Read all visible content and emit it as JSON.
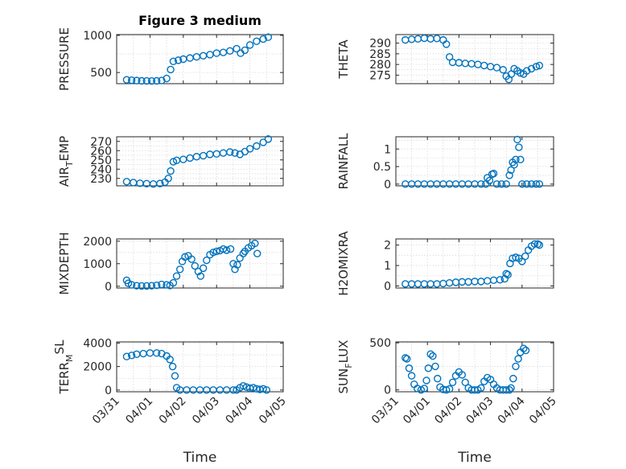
{
  "figure": {
    "title": "Figure 3 medium",
    "marker_color": "#0072BD",
    "xtick_labels": [
      "03/31",
      "04/01",
      "04/02",
      "04/03",
      "04/04",
      "04/05"
    ]
  },
  "chart_data": [
    {
      "type": "scatter",
      "ylabel": "PRESSURE",
      "x_unit": "days from 03/31",
      "xlim": [
        0,
        5
      ],
      "ylim": [
        350,
        1010
      ],
      "yticks": [
        500,
        1000
      ],
      "ytick_labels": [
        "500",
        "1000"
      ],
      "points": [
        [
          0.3,
          402
        ],
        [
          0.45,
          397
        ],
        [
          0.6,
          392
        ],
        [
          0.75,
          388
        ],
        [
          0.9,
          387
        ],
        [
          1.05,
          386
        ],
        [
          1.2,
          388
        ],
        [
          1.35,
          393
        ],
        [
          1.5,
          420
        ],
        [
          1.62,
          540
        ],
        [
          1.7,
          650
        ],
        [
          1.85,
          665
        ],
        [
          2.0,
          680
        ],
        [
          2.2,
          695
        ],
        [
          2.4,
          710
        ],
        [
          2.6,
          725
        ],
        [
          2.8,
          740
        ],
        [
          3.0,
          760
        ],
        [
          3.2,
          770
        ],
        [
          3.4,
          790
        ],
        [
          3.6,
          820
        ],
        [
          3.72,
          760
        ],
        [
          3.85,
          800
        ],
        [
          4.0,
          870
        ],
        [
          4.2,
          920
        ],
        [
          4.4,
          950
        ],
        [
          4.55,
          975
        ]
      ]
    },
    {
      "type": "scatter",
      "ylabel": "THETA",
      "x_unit": "days from 03/31",
      "xlim": [
        0,
        5
      ],
      "ylim": [
        271,
        294
      ],
      "yticks": [
        275,
        280,
        285,
        290
      ],
      "ytick_labels": [
        "275",
        "280",
        "285",
        "290"
      ],
      "points": [
        [
          0.3,
          291.5
        ],
        [
          0.5,
          291.8
        ],
        [
          0.7,
          292.0
        ],
        [
          0.9,
          292.3
        ],
        [
          1.1,
          292.0
        ],
        [
          1.3,
          292.2
        ],
        [
          1.5,
          291.5
        ],
        [
          1.6,
          289.5
        ],
        [
          1.7,
          283.5
        ],
        [
          1.8,
          281.0
        ],
        [
          2.0,
          280.8
        ],
        [
          2.2,
          280.5
        ],
        [
          2.4,
          280.3
        ],
        [
          2.6,
          280.0
        ],
        [
          2.8,
          279.5
        ],
        [
          3.0,
          279.0
        ],
        [
          3.2,
          278.5
        ],
        [
          3.4,
          277.5
        ],
        [
          3.5,
          274.5
        ],
        [
          3.58,
          273.0
        ],
        [
          3.66,
          275.5
        ],
        [
          3.75,
          278.0
        ],
        [
          3.85,
          277.0
        ],
        [
          3.95,
          276.0
        ],
        [
          4.05,
          275.5
        ],
        [
          4.15,
          277.0
        ],
        [
          4.3,
          278.0
        ],
        [
          4.45,
          279.0
        ],
        [
          4.55,
          279.5
        ]
      ]
    },
    {
      "type": "scatter",
      "ylabel": "AIR",
      "ylabel_sub": "T",
      "ylabel_tail": "EMP",
      "x_unit": "days from 03/31",
      "xlim": [
        0,
        5
      ],
      "ylim": [
        222,
        275
      ],
      "yticks": [
        230,
        240,
        250,
        260,
        270
      ],
      "ytick_labels": [
        "230",
        "240",
        "250",
        "260",
        "270"
      ],
      "points": [
        [
          0.3,
          226.5
        ],
        [
          0.5,
          225.5
        ],
        [
          0.7,
          224.8
        ],
        [
          0.9,
          224.3
        ],
        [
          1.1,
          224.0
        ],
        [
          1.3,
          224.5
        ],
        [
          1.45,
          226.0
        ],
        [
          1.55,
          230.0
        ],
        [
          1.62,
          238.0
        ],
        [
          1.7,
          248.0
        ],
        [
          1.8,
          249.5
        ],
        [
          2.0,
          250.5
        ],
        [
          2.2,
          252.0
        ],
        [
          2.4,
          253.5
        ],
        [
          2.6,
          254.5
        ],
        [
          2.8,
          256.0
        ],
        [
          3.0,
          256.5
        ],
        [
          3.2,
          257.5
        ],
        [
          3.4,
          258.5
        ],
        [
          3.55,
          257.5
        ],
        [
          3.7,
          256.0
        ],
        [
          3.85,
          259.0
        ],
        [
          4.0,
          262.0
        ],
        [
          4.2,
          265.0
        ],
        [
          4.4,
          269.0
        ],
        [
          4.55,
          272.5
        ]
      ]
    },
    {
      "type": "scatter",
      "ylabel": "RAINFALL",
      "x_unit": "days from 03/31",
      "xlim": [
        0,
        5
      ],
      "ylim": [
        -0.05,
        1.35
      ],
      "yticks": [
        0,
        0.5,
        1
      ],
      "ytick_labels": [
        "0",
        "0.5",
        "1"
      ],
      "points": [
        [
          0.3,
          0
        ],
        [
          0.5,
          0
        ],
        [
          0.7,
          0
        ],
        [
          0.9,
          0
        ],
        [
          1.1,
          0
        ],
        [
          1.3,
          0
        ],
        [
          1.5,
          0
        ],
        [
          1.7,
          0
        ],
        [
          1.9,
          0
        ],
        [
          2.1,
          0
        ],
        [
          2.3,
          0
        ],
        [
          2.5,
          0
        ],
        [
          2.7,
          0
        ],
        [
          2.85,
          0
        ],
        [
          2.9,
          0.18
        ],
        [
          2.97,
          0.1
        ],
        [
          3.05,
          0.28
        ],
        [
          3.1,
          0.3
        ],
        [
          3.2,
          0
        ],
        [
          3.35,
          0
        ],
        [
          3.5,
          0
        ],
        [
          3.6,
          0.25
        ],
        [
          3.65,
          0.4
        ],
        [
          3.7,
          0.62
        ],
        [
          3.75,
          0.55
        ],
        [
          3.8,
          0.7
        ],
        [
          3.85,
          1.27
        ],
        [
          3.9,
          1.05
        ],
        [
          3.95,
          0.7
        ],
        [
          4.0,
          0
        ],
        [
          4.15,
          0
        ],
        [
          4.3,
          0
        ],
        [
          4.45,
          0
        ],
        [
          4.55,
          0
        ]
      ]
    },
    {
      "type": "scatter",
      "ylabel": "MIXDEPTH",
      "x_unit": "days from 03/31",
      "xlim": [
        0,
        5
      ],
      "ylim": [
        -80,
        2100
      ],
      "yticks": [
        0,
        1000,
        2000
      ],
      "ytick_labels": [
        "0",
        "1000",
        "2000"
      ],
      "points": [
        [
          0.3,
          260
        ],
        [
          0.35,
          130
        ],
        [
          0.45,
          60
        ],
        [
          0.6,
          20
        ],
        [
          0.75,
          10
        ],
        [
          0.9,
          10
        ],
        [
          1.05,
          20
        ],
        [
          1.2,
          40
        ],
        [
          1.35,
          80
        ],
        [
          1.5,
          60
        ],
        [
          1.6,
          30
        ],
        [
          1.7,
          150
        ],
        [
          1.8,
          450
        ],
        [
          1.9,
          750
        ],
        [
          1.97,
          1100
        ],
        [
          2.05,
          1300
        ],
        [
          2.15,
          1350
        ],
        [
          2.25,
          1200
        ],
        [
          2.35,
          900
        ],
        [
          2.45,
          650
        ],
        [
          2.52,
          450
        ],
        [
          2.6,
          800
        ],
        [
          2.7,
          1150
        ],
        [
          2.8,
          1400
        ],
        [
          2.9,
          1500
        ],
        [
          3.0,
          1550
        ],
        [
          3.1,
          1580
        ],
        [
          3.2,
          1650
        ],
        [
          3.3,
          1600
        ],
        [
          3.42,
          1650
        ],
        [
          3.5,
          1000
        ],
        [
          3.55,
          750
        ],
        [
          3.62,
          950
        ],
        [
          3.7,
          1250
        ],
        [
          3.8,
          1450
        ],
        [
          3.85,
          1550
        ],
        [
          3.95,
          1700
        ],
        [
          4.05,
          1800
        ],
        [
          4.15,
          1900
        ],
        [
          4.22,
          1450
        ]
      ]
    },
    {
      "type": "scatter",
      "ylabel": "H2OMIXRA",
      "x_unit": "days from 03/31",
      "xlim": [
        0,
        5
      ],
      "ylim": [
        -0.1,
        2.3
      ],
      "yticks": [
        0,
        1,
        2
      ],
      "ytick_labels": [
        "0",
        "1",
        "2"
      ],
      "points": [
        [
          0.3,
          0.1
        ],
        [
          0.5,
          0.1
        ],
        [
          0.7,
          0.1
        ],
        [
          0.9,
          0.1
        ],
        [
          1.1,
          0.1
        ],
        [
          1.3,
          0.1
        ],
        [
          1.5,
          0.12
        ],
        [
          1.7,
          0.15
        ],
        [
          1.9,
          0.18
        ],
        [
          2.1,
          0.2
        ],
        [
          2.3,
          0.2
        ],
        [
          2.5,
          0.22
        ],
        [
          2.7,
          0.22
        ],
        [
          2.9,
          0.25
        ],
        [
          3.1,
          0.28
        ],
        [
          3.3,
          0.3
        ],
        [
          3.45,
          0.35
        ],
        [
          3.5,
          0.6
        ],
        [
          3.55,
          0.55
        ],
        [
          3.62,
          1.1
        ],
        [
          3.7,
          1.35
        ],
        [
          3.8,
          1.4
        ],
        [
          3.9,
          1.35
        ],
        [
          4.0,
          1.2
        ],
        [
          4.1,
          1.45
        ],
        [
          4.2,
          1.75
        ],
        [
          4.3,
          1.95
        ],
        [
          4.4,
          2.05
        ],
        [
          4.5,
          2.05
        ],
        [
          4.55,
          2.0
        ]
      ]
    },
    {
      "type": "scatter",
      "ylabel": "TERR",
      "ylabel_sub": "M",
      "ylabel_tail": "SL",
      "x_unit": "days from 03/31",
      "xlim": [
        0,
        5
      ],
      "ylim": [
        -150,
        4100
      ],
      "yticks": [
        0,
        2000,
        4000
      ],
      "ytick_labels": [
        "0",
        "2000",
        "4000"
      ],
      "points": [
        [
          0.3,
          2850
        ],
        [
          0.45,
          2950
        ],
        [
          0.6,
          3050
        ],
        [
          0.8,
          3100
        ],
        [
          1.0,
          3150
        ],
        [
          1.2,
          3150
        ],
        [
          1.35,
          3100
        ],
        [
          1.5,
          2900
        ],
        [
          1.6,
          2600
        ],
        [
          1.68,
          2000
        ],
        [
          1.75,
          1200
        ],
        [
          1.8,
          200
        ],
        [
          1.9,
          0
        ],
        [
          2.1,
          0
        ],
        [
          2.3,
          0
        ],
        [
          2.5,
          0
        ],
        [
          2.7,
          0
        ],
        [
          2.9,
          0
        ],
        [
          3.1,
          0
        ],
        [
          3.3,
          0
        ],
        [
          3.5,
          0
        ],
        [
          3.6,
          0
        ],
        [
          3.7,
          200
        ],
        [
          3.8,
          350
        ],
        [
          3.9,
          250
        ],
        [
          4.0,
          150
        ],
        [
          4.1,
          200
        ],
        [
          4.2,
          100
        ],
        [
          4.3,
          50
        ],
        [
          4.4,
          100
        ],
        [
          4.5,
          0
        ]
      ]
    },
    {
      "type": "scatter",
      "ylabel": "SUN",
      "ylabel_sub": "F",
      "ylabel_tail": "LUX",
      "x_unit": "days from 03/31",
      "xlim": [
        0,
        5
      ],
      "ylim": [
        -20,
        510
      ],
      "yticks": [
        0,
        500
      ],
      "ytick_labels": [
        "0",
        "500"
      ],
      "points": [
        [
          0.3,
          340
        ],
        [
          0.35,
          330
        ],
        [
          0.42,
          230
        ],
        [
          0.5,
          150
        ],
        [
          0.58,
          60
        ],
        [
          0.68,
          15
        ],
        [
          0.8,
          0
        ],
        [
          0.9,
          15
        ],
        [
          0.97,
          100
        ],
        [
          1.03,
          230
        ],
        [
          1.1,
          380
        ],
        [
          1.17,
          360
        ],
        [
          1.25,
          250
        ],
        [
          1.32,
          120
        ],
        [
          1.4,
          30
        ],
        [
          1.5,
          5
        ],
        [
          1.6,
          0
        ],
        [
          1.7,
          10
        ],
        [
          1.8,
          80
        ],
        [
          1.9,
          150
        ],
        [
          2.0,
          190
        ],
        [
          2.1,
          160
        ],
        [
          2.2,
          80
        ],
        [
          2.3,
          20
        ],
        [
          2.4,
          0
        ],
        [
          2.5,
          0
        ],
        [
          2.6,
          0
        ],
        [
          2.7,
          20
        ],
        [
          2.8,
          90
        ],
        [
          2.9,
          130
        ],
        [
          3.0,
          110
        ],
        [
          3.1,
          60
        ],
        [
          3.2,
          20
        ],
        [
          3.3,
          0
        ],
        [
          3.4,
          0
        ],
        [
          3.5,
          0
        ],
        [
          3.6,
          0
        ],
        [
          3.65,
          20
        ],
        [
          3.72,
          120
        ],
        [
          3.8,
          250
        ],
        [
          3.88,
          330
        ],
        [
          3.95,
          400
        ],
        [
          4.05,
          440
        ],
        [
          4.12,
          420
        ]
      ]
    }
  ]
}
